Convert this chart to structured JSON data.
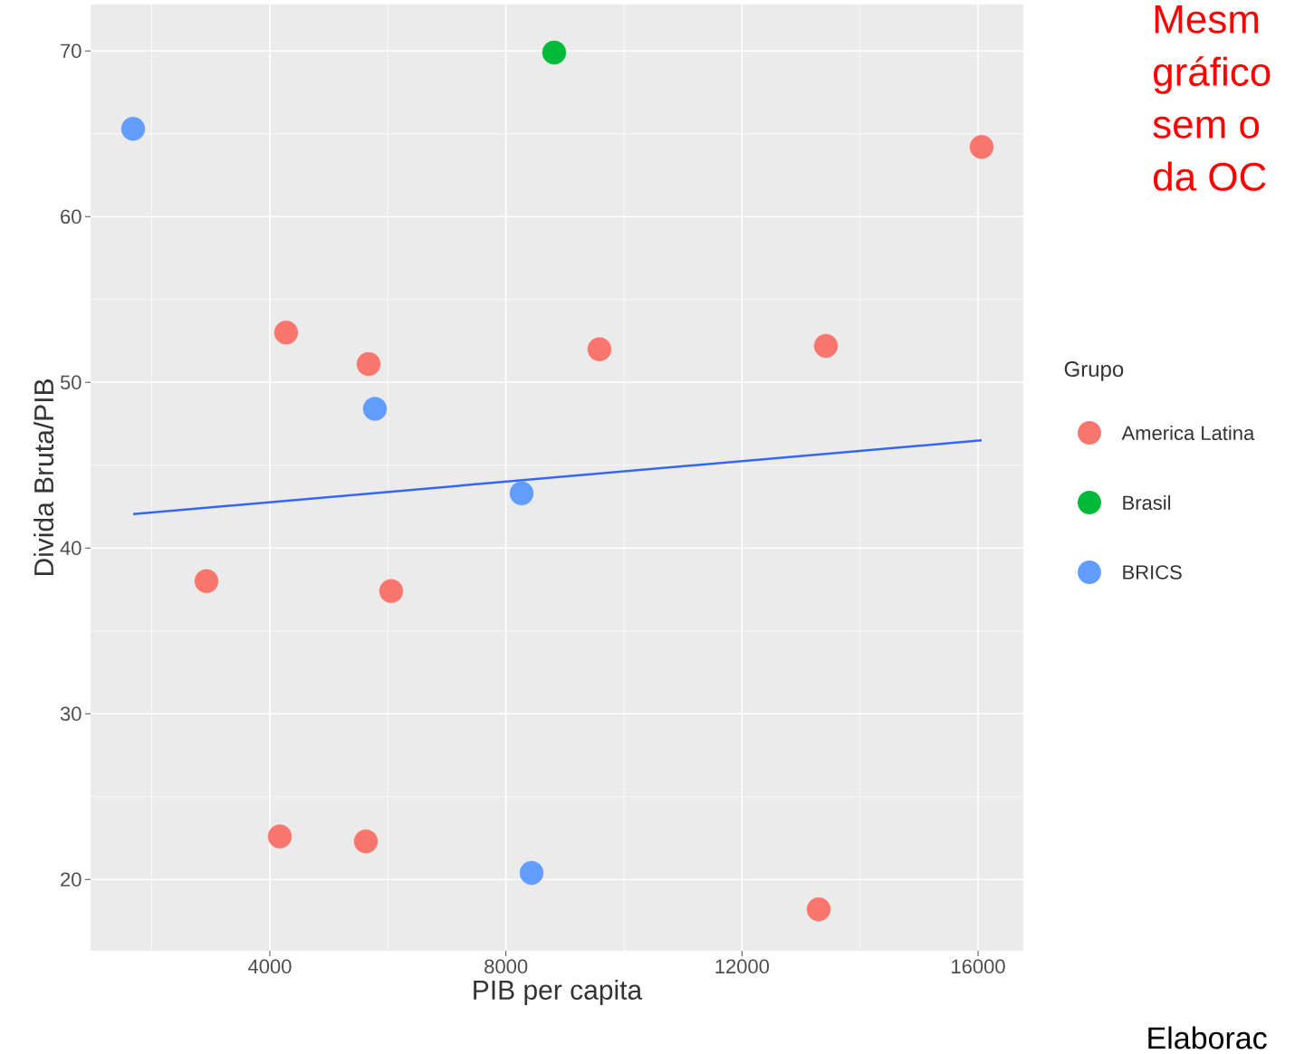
{
  "chart_data": {
    "type": "scatter",
    "xlabel": "PIB per capita",
    "ylabel": "Divida Bruta/PIB",
    "legend_title": "Grupo",
    "legend": "right",
    "grid": true,
    "marker": "circle",
    "xlim": [
      962,
      16767
    ],
    "ylim": [
      15.7,
      72.8
    ],
    "xticks": [
      4000,
      8000,
      12000,
      16000
    ],
    "yticks": [
      20,
      30,
      40,
      50,
      60,
      70
    ],
    "series": [
      {
        "name": "America Latina",
        "color": "#f8766d",
        "x": [
          2926,
          4276,
          5673,
          9585,
          13422,
          16061,
          6056,
          4169,
          5627,
          13299
        ],
        "values": [
          38.0,
          53.0,
          51.1,
          52.0,
          52.2,
          64.2,
          37.4,
          22.6,
          22.3,
          18.2
        ]
      },
      {
        "name": "Brasil",
        "color": "#00ba38",
        "x": [
          8818
        ],
        "values": [
          69.9
        ]
      },
      {
        "name": "BRICS",
        "color": "#619cff",
        "x": [
          1683,
          5780,
          8266,
          8435
        ],
        "values": [
          65.3,
          48.4,
          43.3,
          20.4
        ]
      },
      {
        "type": "line",
        "marker": "none",
        "color": "#3366ff",
        "x": [
          1683,
          16061
        ],
        "values": [
          42.05,
          46.5
        ]
      }
    ],
    "annotations": [
      "Mesm",
      "gráfico",
      "sem o",
      "da OC",
      "Elaborac"
    ]
  }
}
